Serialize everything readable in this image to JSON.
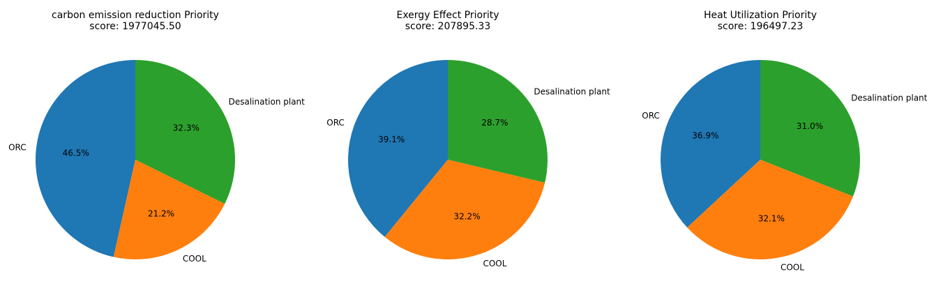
{
  "chart_data": [
    {
      "type": "pie",
      "title": "carbon emission reduction Priority",
      "subtitle": "score: 1977045.50",
      "start_angle_deg": 90,
      "direction": "counterclockwise",
      "slices": [
        {
          "label": "ORC",
          "value": 46.5,
          "pct_label": "46.5%",
          "color": "#1f77b4"
        },
        {
          "label": "COOL",
          "value": 21.2,
          "pct_label": "21.2%",
          "color": "#ff7f0e"
        },
        {
          "label": "Desalination plant",
          "value": 32.3,
          "pct_label": "32.3%",
          "color": "#2ca02c"
        }
      ]
    },
    {
      "type": "pie",
      "title": "Exergy Effect Priority",
      "subtitle": "score: 207895.33",
      "start_angle_deg": 90,
      "direction": "counterclockwise",
      "slices": [
        {
          "label": "ORC",
          "value": 39.1,
          "pct_label": "39.1%",
          "color": "#1f77b4"
        },
        {
          "label": "COOL",
          "value": 32.2,
          "pct_label": "32.2%",
          "color": "#ff7f0e"
        },
        {
          "label": "Desalination plant",
          "value": 28.7,
          "pct_label": "28.7%",
          "color": "#2ca02c"
        }
      ]
    },
    {
      "type": "pie",
      "title": "Heat Utilization Priority",
      "subtitle": "score: 196497.23",
      "start_angle_deg": 90,
      "direction": "counterclockwise",
      "slices": [
        {
          "label": "ORC",
          "value": 36.9,
          "pct_label": "36.9%",
          "color": "#1f77b4"
        },
        {
          "label": "COOL",
          "value": 32.1,
          "pct_label": "32.1%",
          "color": "#ff7f0e"
        },
        {
          "label": "Desalination plant",
          "value": 31.0,
          "pct_label": "31.0%",
          "color": "#2ca02c"
        }
      ]
    }
  ]
}
